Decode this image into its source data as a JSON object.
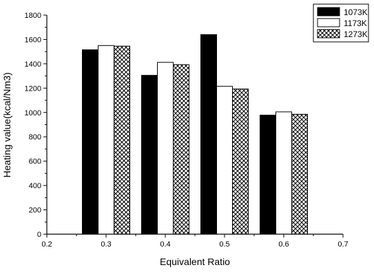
{
  "chart_data": {
    "type": "bar",
    "title": "",
    "xlabel": "Equivalent Ratio",
    "ylabel": "Heating value(kcal/Nm3)",
    "xlim": [
      0.2,
      0.7
    ],
    "ylim": [
      0,
      1800
    ],
    "x_ticks": [
      "0.2",
      "0.3",
      "0.4",
      "0.5",
      "0.6",
      "0.7"
    ],
    "y_ticks": [
      "0",
      "200",
      "400",
      "600",
      "800",
      "1000",
      "1200",
      "1400",
      "1600",
      "1800"
    ],
    "categories": [
      "0.3",
      "0.4",
      "0.5",
      "0.6"
    ],
    "x": [
      0.3,
      0.4,
      0.5,
      0.6
    ],
    "series": [
      {
        "name": "1073K",
        "values": [
          1515,
          1305,
          1640,
          978
        ],
        "fill": "#000000"
      },
      {
        "name": "1173K",
        "values": [
          1550,
          1412,
          1215,
          1005
        ],
        "fill": "#ffffff"
      },
      {
        "name": "1273K",
        "values": [
          1545,
          1393,
          1193,
          985
        ],
        "fill": "crosshatch"
      }
    ],
    "grid": false,
    "legend": "top-right"
  }
}
